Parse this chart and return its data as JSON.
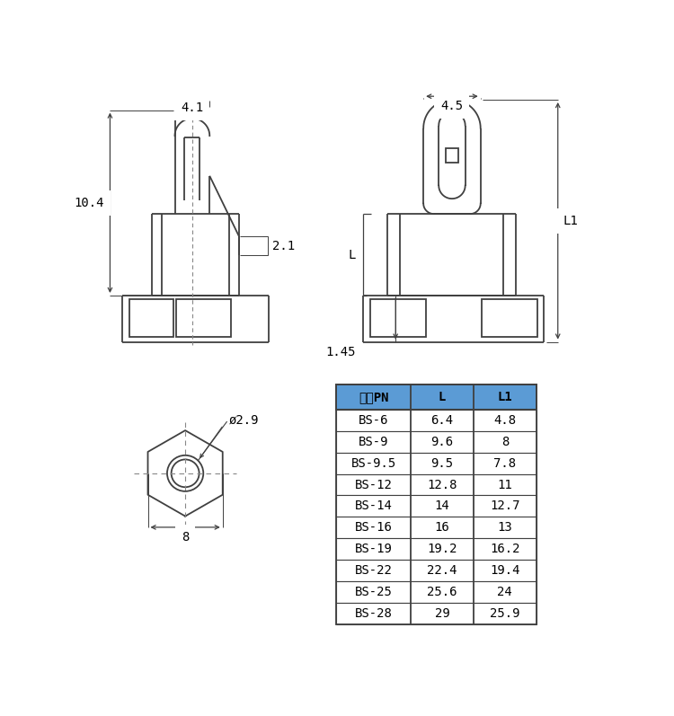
{
  "bg_color": "#ffffff",
  "line_color": "#404040",
  "dash_color": "#888888",
  "header_bg": "#5b9bd5",
  "header_text_color": "#000000",
  "table_headers": [
    "型号PN",
    "L",
    "L1"
  ],
  "table_rows": [
    [
      "BS-6",
      "6.4",
      "4.8"
    ],
    [
      "BS-9",
      "9.6",
      "8"
    ],
    [
      "BS-9.5",
      "9.5",
      "7.8"
    ],
    [
      "BS-12",
      "12.8",
      "11"
    ],
    [
      "BS-14",
      "14",
      "12.7"
    ],
    [
      "BS-16",
      "16",
      "13"
    ],
    [
      "BS-19",
      "19.2",
      "16.2"
    ],
    [
      "BS-22",
      "22.4",
      "19.4"
    ],
    [
      "BS-25",
      "25.6",
      "24"
    ],
    [
      "BS-28",
      "29",
      "25.9"
    ]
  ],
  "dim_4_1": "4.1",
  "dim_2_1": "2.1",
  "dim_10_4": "10.4",
  "dim_4_5": "4.5",
  "dim_1_45": "1.45",
  "dim_L": "L",
  "dim_L1": "L1",
  "dim_8": "8",
  "dim_d2_9": "ø2.9"
}
